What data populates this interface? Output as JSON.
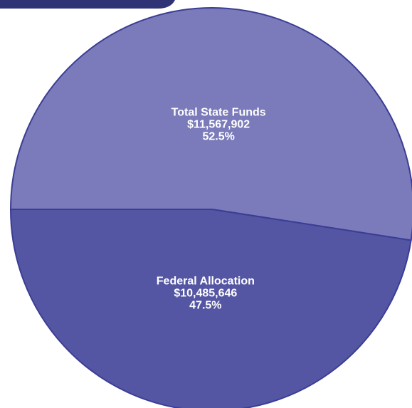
{
  "chart_data": {
    "type": "pie",
    "categories": [
      "Total State Funds",
      "Federal Allocation"
    ],
    "values": [
      11567902,
      10485646
    ],
    "value_labels": [
      "$11,567,902",
      "$10,485,646"
    ],
    "percentages": [
      52.5,
      47.5
    ],
    "percentage_labels": [
      "52.5%",
      "47.5%"
    ],
    "colors": [
      "#7b7bbb",
      "#5456a3"
    ]
  }
}
